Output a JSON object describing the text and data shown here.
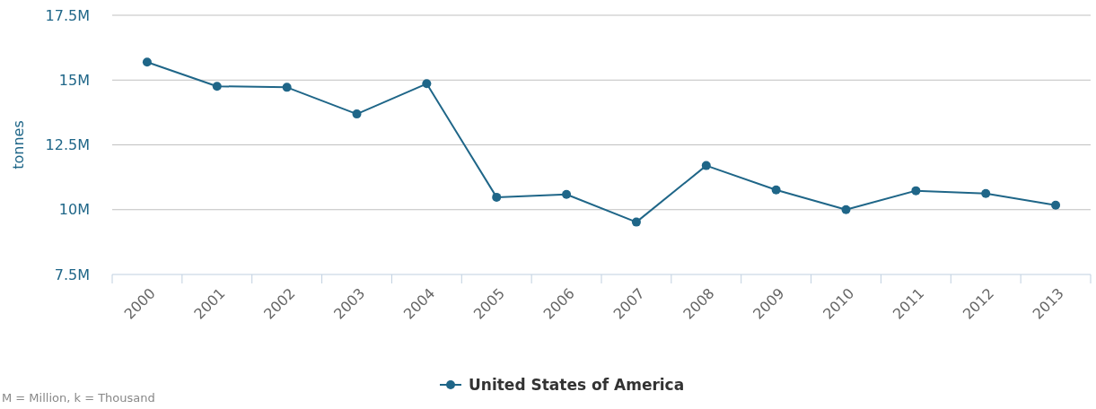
{
  "chart_data": {
    "type": "line",
    "ylabel": "tonnes",
    "categories": [
      "2000",
      "2001",
      "2002",
      "2003",
      "2004",
      "2005",
      "2006",
      "2007",
      "2008",
      "2009",
      "2010",
      "2011",
      "2012",
      "2013"
    ],
    "series": [
      {
        "name": "United States of America",
        "color": "#1f6688",
        "values": [
          15690000,
          14760000,
          14720000,
          13690000,
          14860000,
          10480000,
          10590000,
          9520000,
          11700000,
          10760000,
          10000000,
          10730000,
          10620000,
          10170000
        ]
      }
    ],
    "ylim": [
      7500000,
      17500000
    ],
    "yticks": [
      {
        "value": 7500000,
        "label": "7.5M"
      },
      {
        "value": 10000000,
        "label": "10M"
      },
      {
        "value": 12500000,
        "label": "12.5M"
      },
      {
        "value": 15000000,
        "label": "15M"
      },
      {
        "value": 17500000,
        "label": "17.5M"
      }
    ],
    "grid": "y",
    "legend": "bottom",
    "marker": "circle",
    "line_style": "solid",
    "annotations": [
      "M = Million, k = Thousand"
    ]
  }
}
